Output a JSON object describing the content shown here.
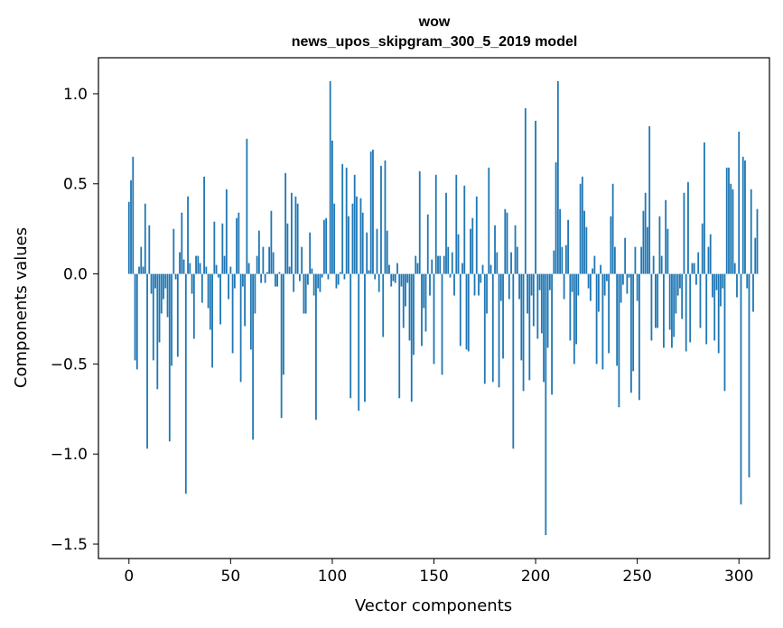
{
  "chart_data": {
    "type": "bar",
    "title": "wow",
    "subtitle": "news_upos_skipgram_300_5_2019 model",
    "xlabel": "Vector components",
    "ylabel": "Components values",
    "xlim": [
      -15,
      315
    ],
    "ylim": [
      -1.58,
      1.2
    ],
    "xticks": [
      0,
      50,
      100,
      150,
      200,
      250,
      300
    ],
    "xtick_labels": [
      "0",
      "50",
      "100",
      "150",
      "200",
      "250",
      "300"
    ],
    "yticks": [
      1.0,
      0.5,
      0.0,
      -0.5,
      -1.0,
      -1.5
    ],
    "ytick_labels": [
      "1.0",
      "0.5",
      "0.0",
      "−0.5",
      "−1.0",
      "−1.5"
    ],
    "grid": false,
    "color": "#1f77b4",
    "values": [
      0.4,
      0.52,
      0.65,
      -0.48,
      -0.53,
      0.04,
      0.15,
      0.04,
      0.39,
      -0.97,
      0.27,
      -0.11,
      -0.48,
      -0.08,
      -0.64,
      -0.38,
      -0.22,
      -0.14,
      -0.08,
      -0.24,
      -0.93,
      -0.51,
      0.25,
      -0.03,
      -0.46,
      0.12,
      0.34,
      0.08,
      -1.22,
      0.43,
      0.06,
      -0.11,
      -0.36,
      0.1,
      0.1,
      0.06,
      -0.16,
      0.54,
      0.04,
      -0.19,
      -0.31,
      -0.52,
      0.29,
      0.05,
      -0.02,
      -0.28,
      0.28,
      0.1,
      0.47,
      -0.14,
      0.04,
      -0.44,
      -0.08,
      0.31,
      0.34,
      -0.6,
      -0.07,
      -0.29,
      0.75,
      0.06,
      -0.42,
      -0.92,
      -0.22,
      0.1,
      0.24,
      -0.05,
      0.15,
      -0.05,
      0.01,
      0.15,
      0.35,
      0.12,
      -0.07,
      -0.07,
      0.01,
      -0.8,
      -0.56,
      0.56,
      0.28,
      0.04,
      0.45,
      -0.1,
      0.43,
      0.39,
      -0.04,
      0.15,
      -0.22,
      -0.22,
      -0.06,
      0.23,
      0.03,
      -0.12,
      -0.81,
      -0.08,
      -0.1,
      -0.02,
      0.3,
      0.31,
      -0.03,
      1.07,
      0.74,
      0.39,
      -0.08,
      -0.06,
      0.01,
      0.61,
      -0.03,
      0.59,
      0.32,
      -0.69,
      0.39,
      0.55,
      0.43,
      -0.76,
      0.42,
      0.34,
      -0.71,
      0.23,
      0.02,
      0.68,
      0.69,
      -0.03,
      0.25,
      -0.1,
      0.6,
      -0.35,
      0.63,
      0.24,
      0.05,
      -0.07,
      -0.04,
      -0.05,
      0.06,
      -0.69,
      -0.07,
      -0.3,
      -0.18,
      -0.05,
      -0.37,
      -0.71,
      -0.45,
      0.1,
      0.06,
      0.57,
      -0.4,
      -0.19,
      -0.32,
      0.33,
      -0.12,
      0.08,
      -0.5,
      0.55,
      0.1,
      0.1,
      -0.56,
      0.1,
      0.45,
      0.15,
      -0.02,
      0.12,
      -0.12,
      0.55,
      0.22,
      -0.4,
      0.06,
      0.49,
      -0.42,
      -0.43,
      0.25,
      0.31,
      -0.12,
      0.43,
      -0.12,
      -0.05,
      0.05,
      -0.61,
      -0.22,
      0.59,
      0.05,
      -0.6,
      0.27,
      0.12,
      -0.63,
      -0.15,
      -0.47,
      0.36,
      0.34,
      -0.14,
      0.12,
      -0.97,
      0.27,
      0.15,
      -0.14,
      -0.48,
      -0.65,
      0.92,
      -0.22,
      -0.59,
      -0.12,
      -0.29,
      0.85,
      -0.36,
      -0.09,
      -0.33,
      -0.6,
      -1.45,
      -0.41,
      -0.09,
      -0.67,
      0.13,
      0.62,
      1.07,
      0.36,
      0.15,
      -0.14,
      0.16,
      0.3,
      -0.37,
      -0.1,
      -0.5,
      -0.39,
      -0.12,
      0.5,
      0.54,
      0.35,
      0.26,
      -0.08,
      -0.15,
      0.03,
      0.1,
      -0.5,
      -0.21,
      0.05,
      -0.53,
      -0.12,
      -0.04,
      -0.44,
      0.32,
      0.5,
      0.15,
      -0.51,
      -0.74,
      -0.16,
      -0.06,
      0.2,
      -0.11,
      -0.02,
      -0.66,
      -0.54,
      0.15,
      -0.15,
      -0.7,
      0.15,
      0.35,
      0.45,
      0.26,
      0.82,
      -0.37,
      0.1,
      -0.3,
      -0.3,
      0.32,
      0.1,
      -0.41,
      0.41,
      0.25,
      -0.31,
      -0.41,
      -0.35,
      -0.22,
      -0.12,
      -0.08,
      -0.25,
      0.45,
      -0.43,
      0.51,
      -0.38,
      0.06,
      0.06,
      -0.06,
      0.12,
      -0.3,
      0.28,
      0.73,
      -0.39,
      0.15,
      0.22,
      -0.13,
      -0.37,
      -0.09,
      -0.44,
      -0.18,
      -0.08,
      -0.65,
      0.59,
      0.59,
      0.5,
      0.47,
      0.06,
      -0.13,
      0.79,
      -1.28,
      0.65,
      0.63,
      -0.08,
      -1.13,
      0.47,
      -0.21,
      0.2,
      0.36
    ]
  }
}
